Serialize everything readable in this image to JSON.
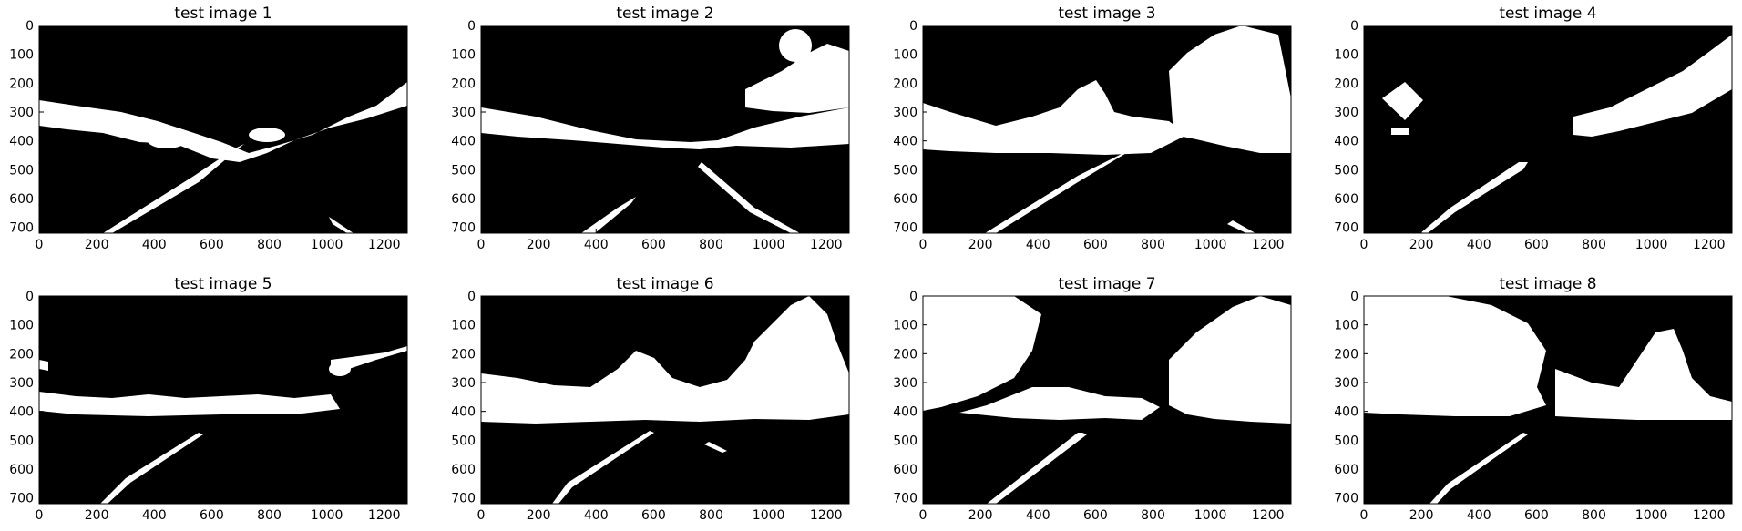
{
  "figure": {
    "background": "#ffffff",
    "image_colors": {
      "background": "#000000",
      "foreground": "#ffffff"
    },
    "panels": [
      {
        "title": "test image 1",
        "content": "binary threshold mask of road scene: left lane line diagonal, right lane dashes, horizon band of white blobs"
      },
      {
        "title": "test image 2",
        "content": "binary threshold mask: horizon band, sky patches top-right, faint left and right lane lines"
      },
      {
        "title": "test image 3",
        "content": "binary threshold mask: dense trees center and right, bright left lane line"
      },
      {
        "title": "test image 4",
        "content": "binary threshold mask: road sign at left, right hillside, left lane line"
      },
      {
        "title": "test image 5",
        "content": "binary threshold mask: thin horizon band, left lane line"
      },
      {
        "title": "test image 6",
        "content": "binary threshold mask: trees at right, horizon clutter, left lane line"
      },
      {
        "title": "test image 7",
        "content": "binary threshold mask: heavy foliage top-left and right, left lane line"
      },
      {
        "title": "test image 8",
        "content": "binary threshold mask: dense foliage top-left and center-right, left lane line"
      }
    ],
    "x_ticks": [
      "0",
      "200",
      "400",
      "600",
      "800",
      "1000",
      "1200"
    ],
    "y_ticks": [
      "0",
      "100",
      "200",
      "300",
      "400",
      "500",
      "600",
      "700"
    ],
    "x_tick_values": [
      0,
      200,
      400,
      600,
      800,
      1000,
      1200
    ],
    "y_tick_values": [
      0,
      100,
      200,
      300,
      400,
      500,
      600,
      700
    ],
    "xlim": [
      0,
      1280
    ],
    "ylim": [
      720,
      0
    ]
  }
}
